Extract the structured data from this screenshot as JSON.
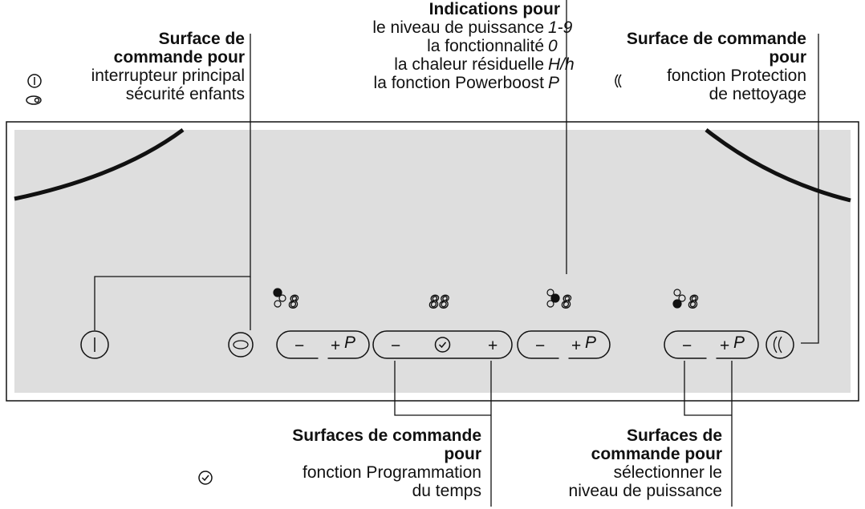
{
  "callouts": [
    {
      "title": [
        "Surface de",
        "commande pour"
      ],
      "lines": [
        "interrupteur principal",
        "sécurité enfants"
      ]
    },
    {
      "title": [
        "Indications pour"
      ],
      "lines": [
        "le niveau de puissance",
        "la fonctionnalité",
        "la chaleur résiduelle",
        "la fonction Powerboost"
      ],
      "symbols": [
        "1-9",
        "0",
        "H/h",
        "P"
      ]
    },
    {
      "title": [
        "Surface de commande",
        "pour"
      ],
      "lines": [
        "fonction Protection",
        "de nettoyage"
      ]
    },
    {
      "title": [
        "Surfaces de commande",
        "pour"
      ],
      "lines": [
        "fonction Programmation",
        "du temps"
      ]
    },
    {
      "title": [
        "Surfaces de",
        "commande pour"
      ],
      "lines": [
        "sélectionner le",
        "niveau de puissance"
      ]
    }
  ],
  "panel": {
    "displays": [
      "8",
      "88",
      "8",
      "8"
    ],
    "buttons": {
      "minus": "−",
      "plus": "+",
      "boost": "P"
    }
  }
}
